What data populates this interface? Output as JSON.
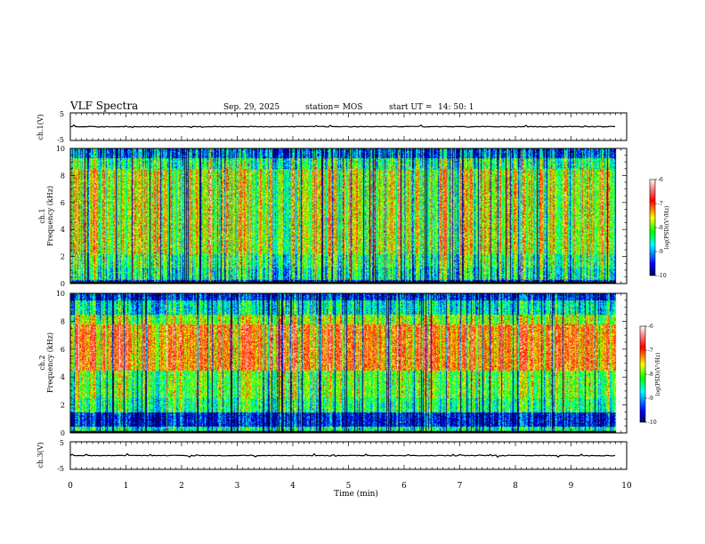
{
  "header": {
    "title": "VLF Spectra",
    "date": "Sep. 29, 2025",
    "station": "station= MOS",
    "start_label": "start  UT =",
    "start_time": "14: 50: 1"
  },
  "chart_data": [
    {
      "name": "ch1-voltage",
      "type": "line",
      "ylabel": "ch.1(V)",
      "ylim": [
        -5,
        5
      ],
      "yticks": [
        "5",
        "-5"
      ],
      "baseline": 0,
      "xlim": [
        0,
        10
      ]
    },
    {
      "name": "ch1-spectrogram",
      "type": "heatmap",
      "ylabel_line1": "ch.1",
      "ylabel_line2": "Frequency  (kHz)",
      "ylim": [
        0,
        10
      ],
      "yticks": [
        "0",
        "2",
        "4",
        "6",
        "8",
        "10"
      ],
      "xlim": [
        0,
        10
      ],
      "colorbar": {
        "label": "log(PSD)(V²/Hz)",
        "range": [
          -10,
          -6
        ],
        "ticks": [
          "-6",
          "-7",
          "-8",
          "-9",
          "-10"
        ]
      }
    },
    {
      "name": "ch2-spectrogram",
      "type": "heatmap",
      "ylabel_line1": "ch.2",
      "ylabel_line2": "Frequency  (kHz)",
      "ylim": [
        0,
        10
      ],
      "yticks": [
        "0",
        "2",
        "4",
        "6",
        "8",
        "10"
      ],
      "xlim": [
        0,
        10
      ],
      "colorbar": {
        "label": "log(PSD)(V²/Hz)",
        "range": [
          -10,
          -6
        ],
        "ticks": [
          "-6",
          "-7",
          "-8",
          "-9",
          "-10"
        ]
      }
    },
    {
      "name": "ch3-voltage",
      "type": "line",
      "ylabel": "ch.3(V)",
      "ylim": [
        -5,
        5
      ],
      "yticks": [
        "5",
        "-5"
      ],
      "baseline": 0,
      "xlim": [
        0,
        10
      ]
    }
  ],
  "xaxis": {
    "label": "Time  (min)",
    "ticks": [
      "0",
      "1",
      "2",
      "3",
      "4",
      "5",
      "6",
      "7",
      "8",
      "9",
      "10"
    ],
    "range": [
      0,
      9.8
    ]
  },
  "colors": {
    "colormap": [
      "#000066",
      "#0000ff",
      "#00ffff",
      "#00ff00",
      "#ffff00",
      "#ff0000",
      "#ff7f7f",
      "#ffffff"
    ]
  }
}
